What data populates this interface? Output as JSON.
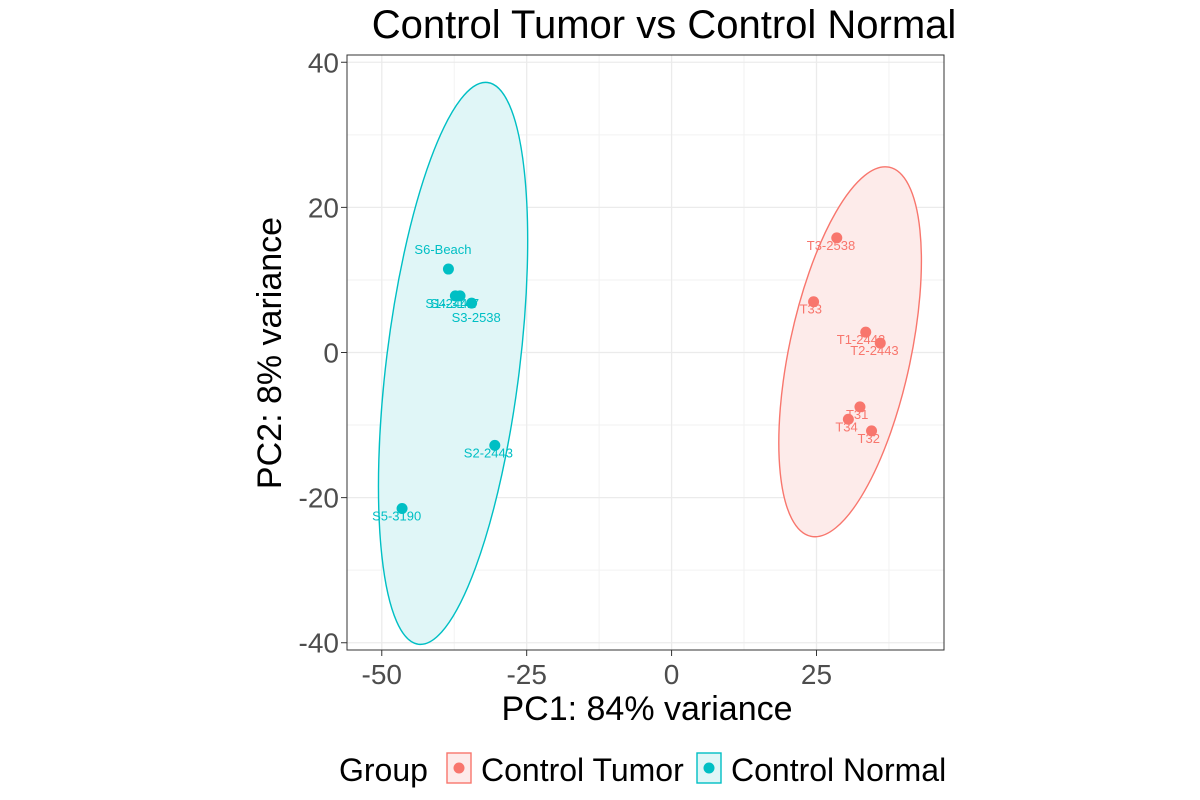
{
  "chart_data": {
    "type": "scatter",
    "title": "Control Tumor vs Control Normal",
    "xlabel": "PC1: 84% variance",
    "ylabel": "PC2: 8% variance",
    "xlim": [
      -56,
      47
    ],
    "ylim": [
      -41,
      41
    ],
    "xticks": [
      -50,
      -25,
      0,
      25
    ],
    "yticks": [
      -40,
      -20,
      0,
      20,
      40
    ],
    "x_tick_labels": [
      "-50",
      "-25",
      "0",
      "25"
    ],
    "y_tick_labels": [
      "-40",
      "-20",
      "0",
      "20",
      "40"
    ],
    "grid": true,
    "legend": {
      "title": "Group",
      "position": "bottom"
    },
    "series": [
      {
        "name": "Control Tumor",
        "color": "#F8766D",
        "fill": "#FDEBEA",
        "points": [
          {
            "label": "T3-2538",
            "x": 28.5,
            "y": 15.8
          },
          {
            "label": "T33",
            "x": 24.5,
            "y": 7.0
          },
          {
            "label": "T1-2442",
            "x": 33.5,
            "y": 2.8
          },
          {
            "label": "T2-2443",
            "x": 36.0,
            "y": 1.3
          },
          {
            "label": "T31",
            "x": 32.5,
            "y": -7.5
          },
          {
            "label": "T34",
            "x": 30.5,
            "y": -9.2
          },
          {
            "label": "T32",
            "x": 34.5,
            "y": -10.8
          }
        ],
        "ellipse": {
          "cx": 30.8,
          "cy": 0.1,
          "rx": 10.5,
          "ry": 26.0,
          "angle": 12
        }
      },
      {
        "name": "Control Normal",
        "color": "#00BFC4",
        "fill": "#E0F6F7",
        "points": [
          {
            "label": "S6-Beach",
            "x": -38.5,
            "y": 11.5
          },
          {
            "label": "S1-2442",
            "x": -37.3,
            "y": 7.8
          },
          {
            "label": "S4-3147",
            "x": -36.5,
            "y": 7.8
          },
          {
            "label": "S3-2538",
            "x": -34.5,
            "y": 6.8
          },
          {
            "label": "S2-2443",
            "x": -30.5,
            "y": -12.8
          },
          {
            "label": "S5-3190",
            "x": -46.5,
            "y": -21.5
          }
        ],
        "ellipse": {
          "cx": -37.7,
          "cy": -1.5,
          "rx": 11.5,
          "ry": 39.0,
          "angle": 7
        }
      }
    ]
  }
}
